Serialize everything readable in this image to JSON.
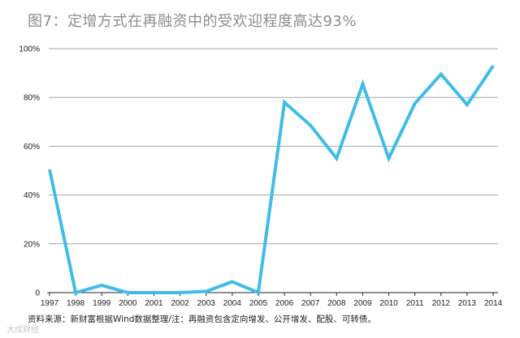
{
  "chart_data": {
    "type": "line",
    "title": "图7：定增方式在再融资中的受欢迎程度高达93%",
    "xlabel": "",
    "ylabel": "",
    "x": [
      "1997",
      "1998",
      "1999",
      "2000",
      "2001",
      "2002",
      "2003",
      "2004",
      "2005",
      "2006",
      "2007",
      "2008",
      "2009",
      "2010",
      "2011",
      "2012",
      "2013",
      "2014"
    ],
    "series": [
      {
        "values": [
          50.5,
          0,
          3,
          0,
          0,
          0,
          0.5,
          4.5,
          0,
          78,
          68.5,
          55,
          85.5,
          55,
          77.5,
          89.5,
          77,
          93
        ]
      }
    ],
    "ylim": [
      0,
      100
    ],
    "yticks": [
      0,
      20,
      40,
      60,
      80,
      100
    ],
    "ytick_labels": [
      "0",
      "20%",
      "40%",
      "60%",
      "80%",
      "100%"
    ],
    "grid": true,
    "line_color": "#3fbde8",
    "grid_color": "#a6a6a6"
  },
  "footer": "资料来源：新财富根据Wind数据整理/注：再融资包含定向增发、公开增发、配股、可转债。",
  "watermark": "大成财经"
}
